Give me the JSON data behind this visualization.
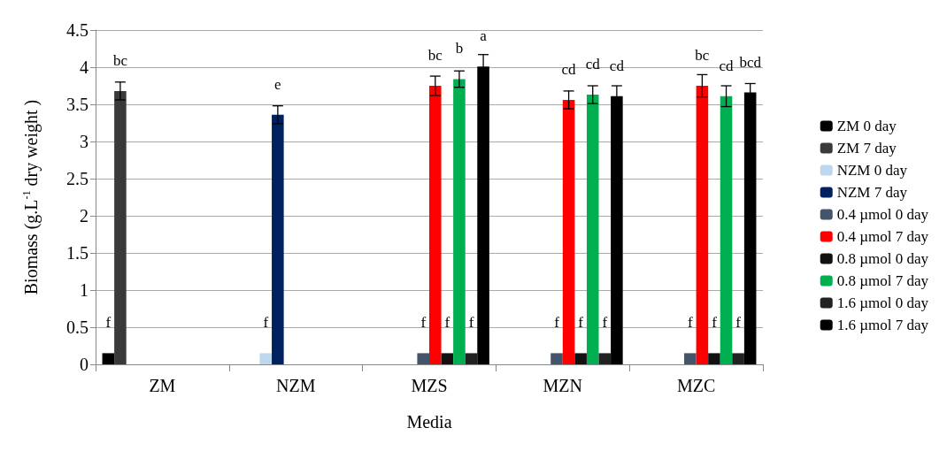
{
  "chart_data": {
    "type": "bar",
    "xlabel": "Media",
    "ylabel": "Biomass (g.L$^{-1}$ dry weight )",
    "categories": [
      "ZM",
      "NZM",
      "MZS",
      "MZN",
      "MZC"
    ],
    "ylim": [
      0,
      4.5
    ],
    "yticks": [
      0,
      0.5,
      1,
      1.5,
      2,
      2.5,
      3,
      3.5,
      4,
      4.5
    ],
    "grid": "y",
    "legend": "right",
    "series": [
      {
        "name": "ZM 0 day",
        "color": "#000000",
        "values": [
          0.15,
          null,
          null,
          null,
          null
        ],
        "value_labels": [
          "f",
          null,
          null,
          null,
          null
        ]
      },
      {
        "name": "ZM 7 day",
        "color": "#3a3a3a",
        "values": [
          3.68,
          null,
          null,
          null,
          null
        ],
        "errors": [
          0.12,
          null,
          null,
          null,
          null
        ],
        "value_labels": [
          "bc",
          null,
          null,
          null,
          null
        ]
      },
      {
        "name": "NZM 0 day",
        "color": "#bdd7ee",
        "values": [
          null,
          0.15,
          null,
          null,
          null
        ],
        "value_labels": [
          null,
          "f",
          null,
          null,
          null
        ]
      },
      {
        "name": "NZM 7 day",
        "color": "#002060",
        "values": [
          null,
          3.36,
          null,
          null,
          null
        ],
        "errors": [
          null,
          0.12,
          null,
          null,
          null
        ],
        "value_labels": [
          null,
          "e",
          null,
          null,
          null
        ]
      },
      {
        "name": "0.4 µmol 0 day",
        "color": "#44546a",
        "values": [
          null,
          null,
          0.15,
          0.15,
          0.15
        ],
        "value_labels": [
          null,
          null,
          "f",
          "f",
          "f"
        ]
      },
      {
        "name": "0.4 µmol 7 day",
        "color": "#ff0000",
        "values": [
          null,
          null,
          3.75,
          3.56,
          3.75
        ],
        "errors": [
          null,
          null,
          0.13,
          0.12,
          0.15
        ],
        "value_labels": [
          null,
          null,
          "bc",
          "cd",
          "bc"
        ]
      },
      {
        "name": "0.8 µmol 0 day",
        "color": "#111111",
        "values": [
          null,
          null,
          0.15,
          0.15,
          0.15
        ],
        "value_labels": [
          null,
          null,
          "f",
          "f",
          "f"
        ]
      },
      {
        "name": "0.8 µmol 7 day",
        "color": "#00b050",
        "values": [
          null,
          null,
          3.84,
          3.63,
          3.61
        ],
        "errors": [
          null,
          null,
          0.11,
          0.12,
          0.14
        ],
        "value_labels": [
          null,
          null,
          "b",
          "cd",
          "cd"
        ]
      },
      {
        "name": "1.6 µmol 0 day",
        "color": "#222222",
        "values": [
          null,
          null,
          0.15,
          0.15,
          0.15
        ],
        "value_labels": [
          null,
          null,
          "f",
          "f",
          "f"
        ]
      },
      {
        "name": "1.6 µmol 7 day",
        "color": "#000000",
        "values": [
          null,
          null,
          4.01,
          3.61,
          3.66
        ],
        "errors": [
          null,
          null,
          0.16,
          0.14,
          0.12
        ],
        "value_labels": [
          null,
          null,
          "a",
          "cd",
          "bcd"
        ]
      }
    ]
  }
}
